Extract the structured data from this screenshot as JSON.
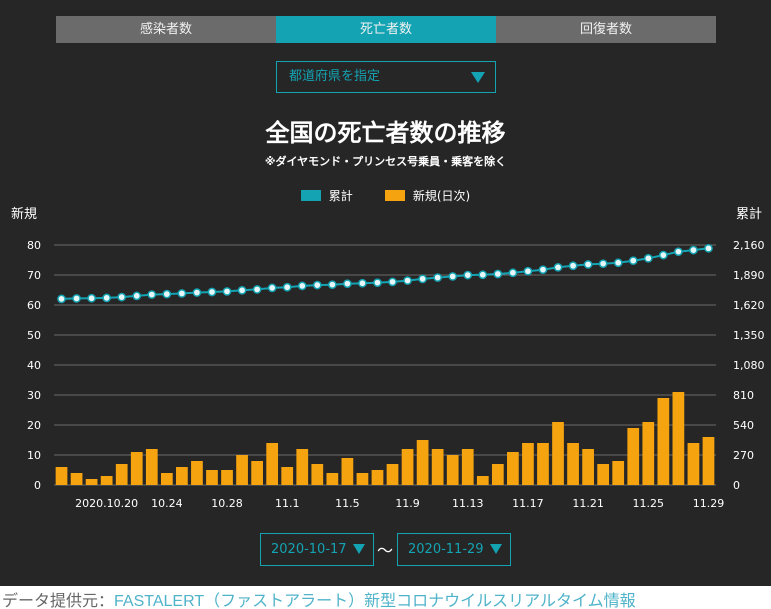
{
  "tabs": [
    {
      "label": "感染者数",
      "active": false
    },
    {
      "label": "死亡者数",
      "active": true
    },
    {
      "label": "回復者数",
      "active": false
    }
  ],
  "prefecture_select": {
    "label": "都道府県を指定"
  },
  "date_range": {
    "start": "2020-10-17",
    "separator": "〜",
    "end": "2020-11-29"
  },
  "footer": {
    "prefix": "データ提供元：",
    "source": "FASTALERT（ファストアラート）新型コロナウイルスリアルタイム情報"
  },
  "colors": {
    "cumulative": "#14a3b3",
    "daily": "#f5a30f",
    "background": "#262626",
    "grid": "#6a6a6a"
  },
  "chart_data": {
    "type": "bar+line",
    "title": "全国の死亡者数の推移",
    "subtitle": "※ダイヤモンド・プリンセス号乗員・乗客を除く",
    "left_axis_label": "新規",
    "right_axis_label": "累計",
    "legend_placement": "top-center",
    "left_ylim": [
      0,
      80
    ],
    "right_ylim": [
      0,
      2160
    ],
    "left_ticks": [
      "0",
      "10",
      "20",
      "30",
      "40",
      "50",
      "60",
      "70",
      "80"
    ],
    "right_ticks": [
      "0",
      "270",
      "540",
      "810",
      "1,080",
      "1,350",
      "1,620",
      "1,890",
      "2,160"
    ],
    "x_tick_labels": [
      {
        "index": 3,
        "label": "2020.10.20"
      },
      {
        "index": 7,
        "label": "10.24"
      },
      {
        "index": 11,
        "label": "10.28"
      },
      {
        "index": 15,
        "label": "11.1"
      },
      {
        "index": 19,
        "label": "11.5"
      },
      {
        "index": 23,
        "label": "11.9"
      },
      {
        "index": 27,
        "label": "11.13"
      },
      {
        "index": 31,
        "label": "11.17"
      },
      {
        "index": 35,
        "label": "11.21"
      },
      {
        "index": 39,
        "label": "11.25"
      },
      {
        "index": 43,
        "label": "11.29"
      }
    ],
    "series": [
      {
        "name": "累計",
        "type": "line",
        "axis": "right",
        "values": [
          1675,
          1679,
          1681,
          1684,
          1691,
          1702,
          1714,
          1718,
          1724,
          1732,
          1737,
          1742,
          1752,
          1760,
          1774,
          1780,
          1792,
          1799,
          1803,
          1812,
          1816,
          1821,
          1828,
          1840,
          1855,
          1867,
          1877,
          1889,
          1892,
          1899,
          1910,
          1924,
          1938,
          1959,
          1973,
          1985,
          1992,
          2000,
          2019,
          2040,
          2069,
          2100,
          2114,
          2130
        ]
      },
      {
        "name": "新規(日次)",
        "type": "bar",
        "axis": "left",
        "values": [
          6,
          4,
          2,
          3,
          7,
          11,
          12,
          4,
          6,
          8,
          5,
          5,
          10,
          8,
          14,
          6,
          12,
          7,
          4,
          9,
          4,
          5,
          7,
          12,
          15,
          12,
          10,
          12,
          3,
          7,
          11,
          14,
          14,
          21,
          14,
          12,
          7,
          8,
          19,
          21,
          29,
          31,
          14,
          16
        ]
      }
    ]
  }
}
